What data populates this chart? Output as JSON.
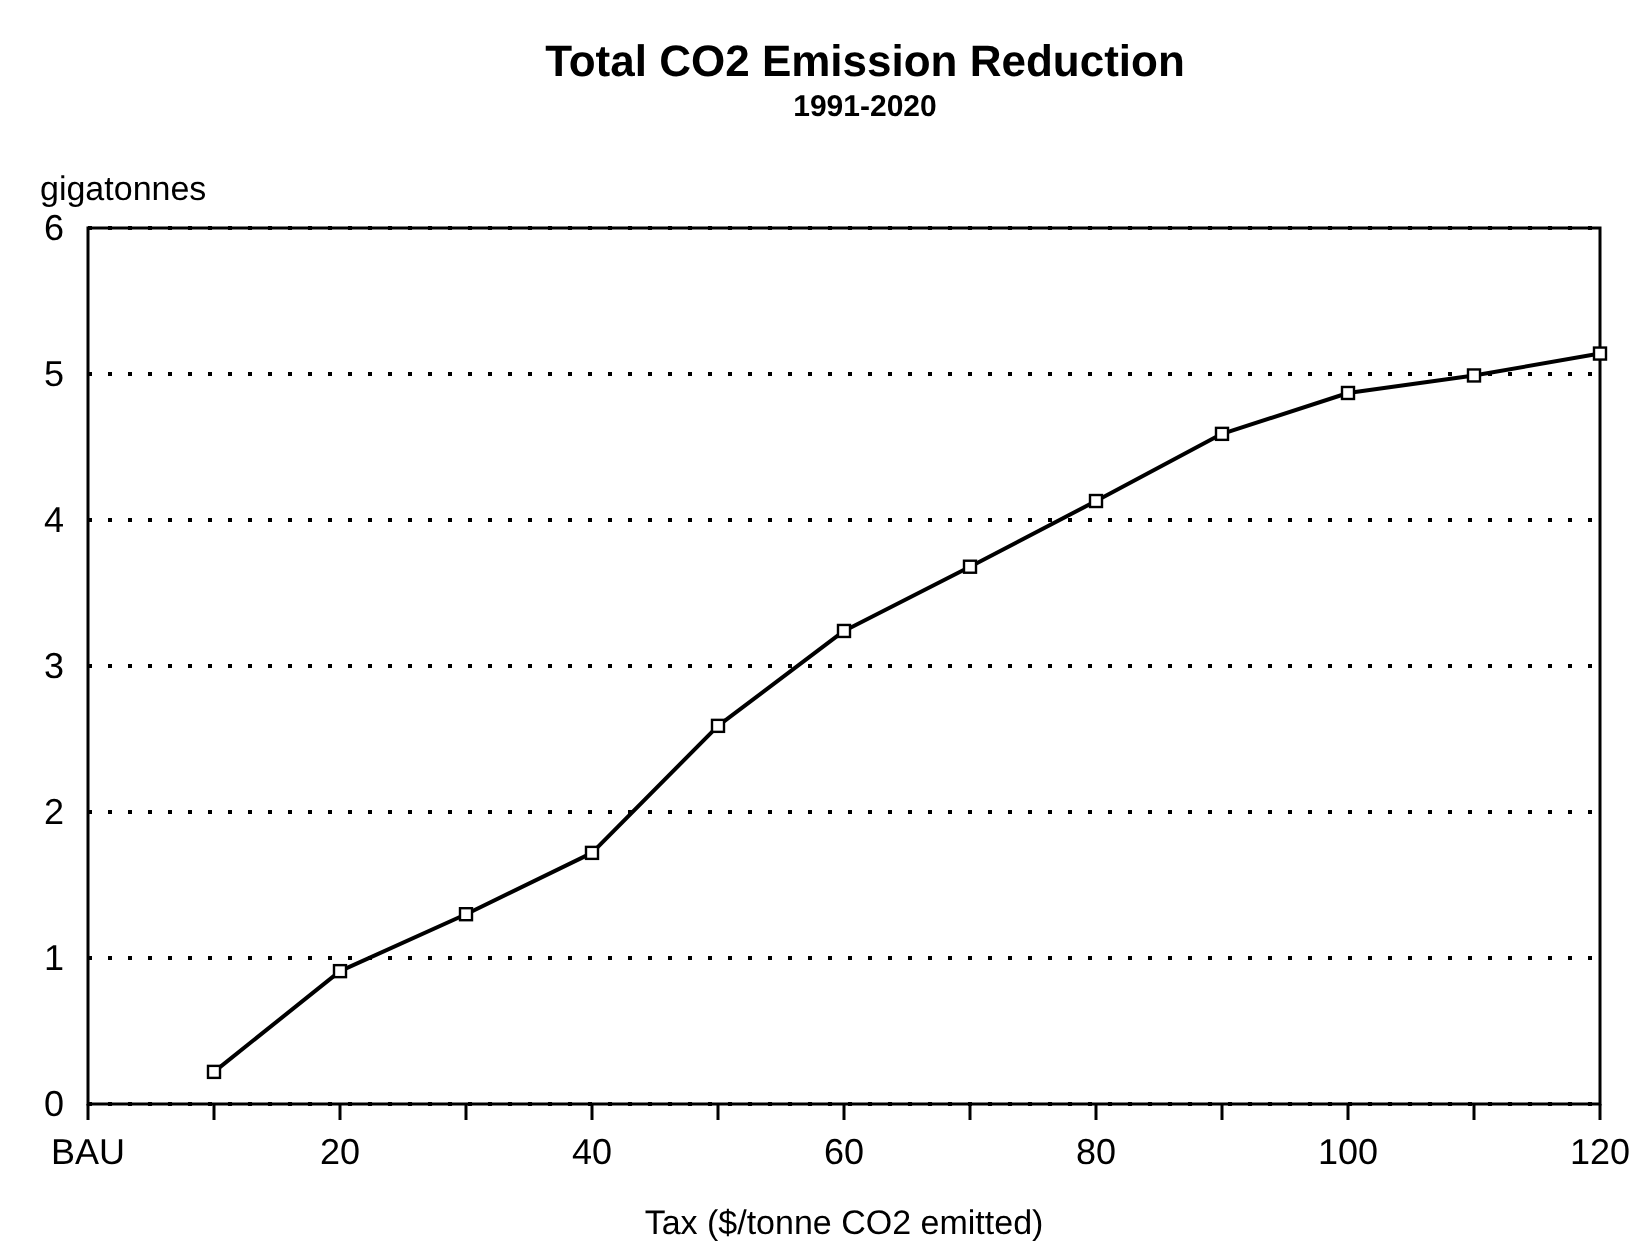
{
  "chart_data": {
    "type": "line",
    "title": "Total CO2 Emission Reduction",
    "subtitle": "1991-2020",
    "xlabel": "Tax ($/tonne CO2 emitted)",
    "ylabel": "gigatonnes",
    "x": [
      10,
      20,
      30,
      40,
      50,
      60,
      70,
      80,
      90,
      100,
      110,
      120
    ],
    "series": [
      {
        "color": "#000000",
        "values": [
          0.22,
          0.91,
          1.3,
          1.72,
          2.59,
          3.24,
          3.68,
          4.13,
          4.59,
          4.87,
          4.99,
          5.14
        ]
      }
    ],
    "xlim": [
      0,
      120
    ],
    "ylim": [
      0,
      6
    ],
    "xticks": [
      {
        "value": 0,
        "label": "BAU"
      },
      {
        "value": 10,
        "label": null
      },
      20,
      {
        "value": 30,
        "label": null
      },
      40,
      {
        "value": 50,
        "label": null
      },
      60,
      {
        "value": 70,
        "label": null
      },
      80,
      {
        "value": 90,
        "label": null
      },
      100,
      {
        "value": 110,
        "label": null
      },
      120
    ],
    "yticks": [
      0,
      1,
      2,
      3,
      4,
      5,
      6
    ],
    "grid": "y",
    "marker": "square",
    "line_style": "solid"
  }
}
